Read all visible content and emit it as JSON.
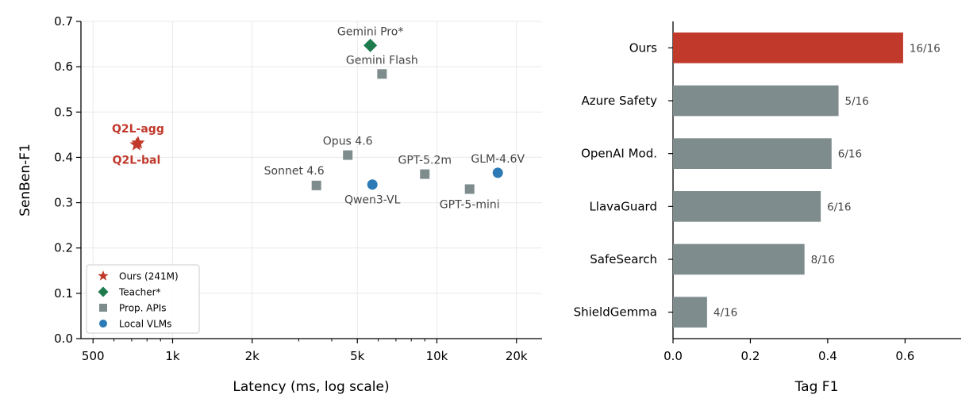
{
  "colors": {
    "ours": "#C0392B",
    "teacher": "#1E7B4E",
    "prop_apis": "#7F8C8D",
    "local_vlms": "#2C7BB6",
    "bar_default": "#7F8C8D",
    "bar_highlight": "#C0392B",
    "label_gray": "#444444"
  },
  "chart_data": [
    {
      "type": "scatter",
      "xlabel": "Latency (ms, log scale)",
      "ylabel": "SenBen-F1",
      "xscale": "log",
      "xlim": [
        450,
        25000
      ],
      "ylim": [
        0,
        0.7
      ],
      "grid": true,
      "xticks": [
        {
          "value": 500,
          "label": "500"
        },
        {
          "value": 1000,
          "label": "1k"
        },
        {
          "value": 2000,
          "label": "2k"
        },
        {
          "value": 5000,
          "label": "5k"
        },
        {
          "value": 10000,
          "label": "10k"
        },
        {
          "value": 20000,
          "label": "20k"
        }
      ],
      "yticks": [
        {
          "value": 0.0,
          "label": "0.0"
        },
        {
          "value": 0.1,
          "label": "0.1"
        },
        {
          "value": 0.2,
          "label": "0.2"
        },
        {
          "value": 0.3,
          "label": "0.3"
        },
        {
          "value": 0.4,
          "label": "0.4"
        },
        {
          "value": 0.5,
          "label": "0.5"
        },
        {
          "value": 0.6,
          "label": "0.6"
        },
        {
          "value": 0.7,
          "label": "0.7"
        }
      ],
      "legend": {
        "position": "lower-left",
        "entries": [
          {
            "label": "Ours (241M)",
            "marker": "star",
            "group": "ours"
          },
          {
            "label": "Teacher*",
            "marker": "diamond",
            "group": "teacher"
          },
          {
            "label": "Prop. APIs",
            "marker": "square",
            "group": "prop_apis"
          },
          {
            "label": "Local VLMs",
            "marker": "circle",
            "group": "local_vlms"
          }
        ]
      },
      "points": [
        {
          "label": "Q2L-agg",
          "x": 740,
          "y": 0.432,
          "group": "ours",
          "label_pos": "above"
        },
        {
          "label": "Q2L-bal",
          "x": 730,
          "y": 0.428,
          "group": "ours",
          "label_pos": "below"
        },
        {
          "label": "Gemini Pro*",
          "x": 5600,
          "y": 0.647,
          "group": "teacher",
          "label_pos": "above"
        },
        {
          "label": "Gemini Flash",
          "x": 6200,
          "y": 0.584,
          "group": "prop_apis",
          "label_pos": "above"
        },
        {
          "label": "Opus 4.6",
          "x": 4600,
          "y": 0.405,
          "group": "prop_apis",
          "label_pos": "above"
        },
        {
          "label": "Sonnet 4.6",
          "x": 3500,
          "y": 0.338,
          "group": "prop_apis",
          "label_pos": "above-left"
        },
        {
          "label": "GPT-5.2m",
          "x": 9000,
          "y": 0.363,
          "group": "prop_apis",
          "label_pos": "above"
        },
        {
          "label": "GPT-5-mini",
          "x": 13300,
          "y": 0.33,
          "group": "prop_apis",
          "label_pos": "below"
        },
        {
          "label": "Qwen3-VL",
          "x": 5700,
          "y": 0.34,
          "group": "local_vlms",
          "label_pos": "below"
        },
        {
          "label": "GLM-4.6V",
          "x": 17000,
          "y": 0.366,
          "group": "local_vlms",
          "label_pos": "above"
        }
      ]
    },
    {
      "type": "bar",
      "orientation": "horizontal",
      "xlabel": "Tag F1",
      "xlim": [
        0,
        0.745
      ],
      "xticks": [
        {
          "value": 0.0,
          "label": "0.0"
        },
        {
          "value": 0.2,
          "label": "0.2"
        },
        {
          "value": 0.4,
          "label": "0.4"
        },
        {
          "value": 0.6,
          "label": "0.6"
        }
      ],
      "categories": [
        "Ours",
        "Azure Safety",
        "OpenAI Mod.",
        "LlavaGuard",
        "SafeSearch",
        "ShieldGemma"
      ],
      "values": [
        0.595,
        0.428,
        0.41,
        0.382,
        0.34,
        0.088
      ],
      "value_labels": [
        "16/16",
        "5/16",
        "6/16",
        "6/16",
        "8/16",
        "4/16"
      ],
      "highlight": [
        true,
        false,
        false,
        false,
        false,
        false
      ]
    }
  ]
}
